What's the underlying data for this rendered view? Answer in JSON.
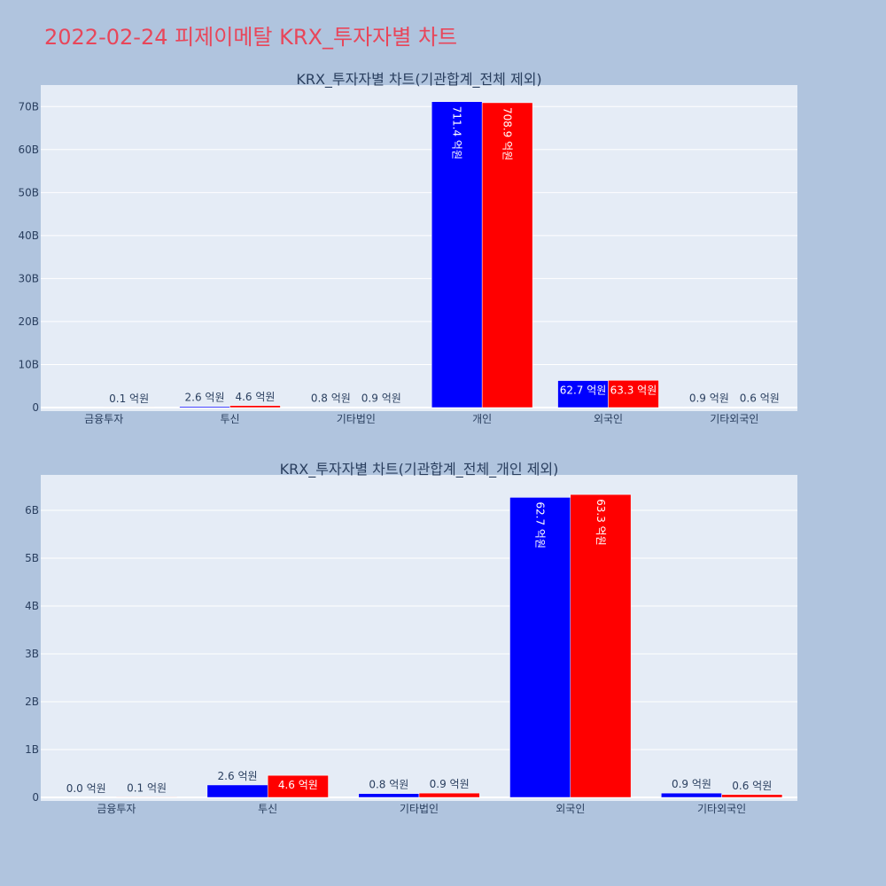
{
  "title": "2022-02-24 피제이메탈 KRX_투자자별 차트",
  "chart_data": [
    {
      "type": "bar",
      "title": "KRX_투자자별 차트(기관합계_전체 제외)",
      "categories": [
        "금융투자",
        "투신",
        "기타법인",
        "개인",
        "외국인",
        "기타외국인"
      ],
      "series": [
        {
          "values": [
            0.0,
            2.6,
            0.8,
            711.4,
            62.7,
            0.9
          ],
          "labels": [
            "",
            "2.6 억원",
            "0.8 억원",
            "711.4 억원",
            "62.7 억원",
            "0.9 억원"
          ],
          "color": "#0000ff"
        },
        {
          "values": [
            0.1,
            4.6,
            0.9,
            708.9,
            63.3,
            0.6
          ],
          "labels": [
            "0.1 억원",
            "4.6 억원",
            "0.9 억원",
            "708.9 억원",
            "63.3 억원",
            "0.6 억원"
          ],
          "color": "#ff0000"
        }
      ],
      "unit_scale": 100000000,
      "ylim": [
        0,
        75000000000
      ],
      "yticks": [
        0,
        10000000000,
        20000000000,
        30000000000,
        40000000000,
        50000000000,
        60000000000,
        70000000000
      ],
      "ytick_labels": [
        "0",
        "10B",
        "20B",
        "30B",
        "40B",
        "50B",
        "60B",
        "70B"
      ],
      "grid": true
    },
    {
      "type": "bar",
      "title": "KRX_투자자별 차트(기관합계_전체_개인 제외)",
      "categories": [
        "금융투자",
        "투신",
        "기타법인",
        "외국인",
        "기타외국인"
      ],
      "series": [
        {
          "values": [
            0.0,
            2.6,
            0.8,
            62.7,
            0.9
          ],
          "labels": [
            "0.0 억원",
            "2.6 억원",
            "0.8 억원",
            "62.7 억원",
            "0.9 억원"
          ],
          "color": "#0000ff"
        },
        {
          "values": [
            0.1,
            4.6,
            0.9,
            63.3,
            0.6
          ],
          "labels": [
            "0.1 억원",
            "4.6 억원",
            "0.9 억원",
            "63.3 억원",
            "0.6 억원"
          ],
          "color": "#ff0000"
        }
      ],
      "unit_scale": 100000000,
      "ylim": [
        0,
        6740000000
      ],
      "yticks": [
        0,
        1000000000,
        2000000000,
        3000000000,
        4000000000,
        5000000000,
        6000000000
      ],
      "ytick_labels": [
        "0",
        "1B",
        "2B",
        "3B",
        "4B",
        "5B",
        "6B"
      ],
      "grid": true
    }
  ]
}
